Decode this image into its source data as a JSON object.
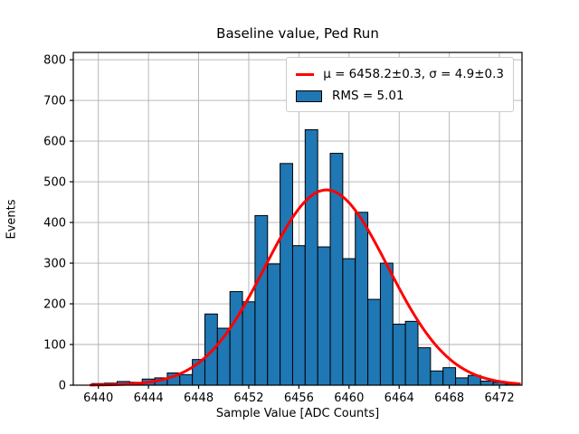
{
  "figure": {
    "title": "Baseline value, Ped Run",
    "xlabel": "Sample Value [ADC Counts]",
    "ylabel": "Events"
  },
  "legend": {
    "entries": [
      {
        "swatch": "line",
        "color": "#ff0000",
        "label": "μ = 6458.2±0.3, σ = 4.9±0.3"
      },
      {
        "swatch": "patch",
        "color": "#1f77b4",
        "label": "RMS = 5.01"
      }
    ]
  },
  "chart_data": {
    "type": "bar",
    "subtype": "histogram-with-gaussian-fit",
    "title": "Baseline value, Ped Run",
    "xlabel": "Sample Value [ADC Counts]",
    "ylabel": "Events",
    "bin_width": 1,
    "bin_centers": [
      6440,
      6441,
      6442,
      6443,
      6444,
      6445,
      6446,
      6447,
      6448,
      6449,
      6450,
      6451,
      6452,
      6453,
      6454,
      6455,
      6456,
      6457,
      6458,
      6459,
      6460,
      6461,
      6462,
      6463,
      6464,
      6465,
      6466,
      6467,
      6468,
      6469,
      6470,
      6471,
      6472,
      6473
    ],
    "values": [
      4,
      5,
      9,
      7,
      15,
      18,
      30,
      26,
      63,
      175,
      140,
      230,
      205,
      417,
      298,
      545,
      343,
      628,
      340,
      570,
      311,
      425,
      211,
      300,
      150,
      157,
      92,
      35,
      43,
      18,
      24,
      10,
      7,
      3
    ],
    "fit": {
      "shape": "gaussian",
      "amplitude": 480,
      "mu": 6458.2,
      "mu_err": 0.3,
      "sigma": 4.9,
      "sigma_err": 0.3,
      "rms": 5.01,
      "x_start": 6439.4,
      "x_end": 6473.6
    },
    "x_ticks": [
      6440,
      6444,
      6448,
      6452,
      6456,
      6460,
      6464,
      6468,
      6472
    ],
    "y_ticks": [
      0,
      100,
      200,
      300,
      400,
      500,
      600,
      700,
      800
    ],
    "xlim": [
      6438,
      6473.8
    ],
    "ylim": [
      0,
      818
    ],
    "grid": true,
    "legend_position": "upper right",
    "colors": {
      "bar_fill": "#1f77b4",
      "bar_edge": "#000000",
      "fit_line": "#ff0000",
      "grid_line": "#b0b0b0",
      "axes_edge": "#000000",
      "background": "#ffffff"
    }
  }
}
